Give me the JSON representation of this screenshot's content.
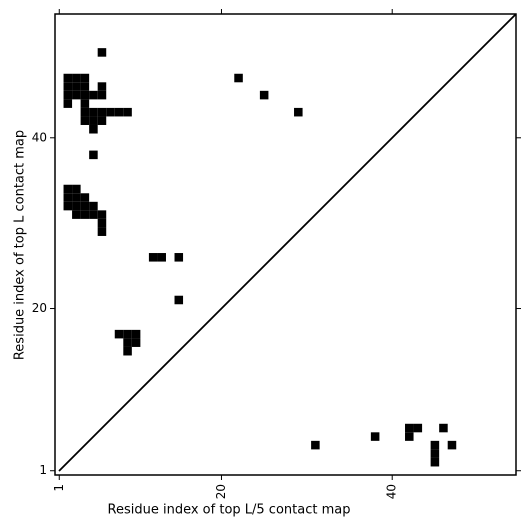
{
  "chart_data": {
    "type": "scatter",
    "marker": "square",
    "xlabel": "Residue index of top L/5 contact map",
    "ylabel": "Residue index of top L contact map",
    "xlim": [
      0.5,
      54.5
    ],
    "ylim": [
      0.5,
      54.5
    ],
    "xticks": [
      1,
      20,
      40
    ],
    "yticks": [
      1,
      20,
      40
    ],
    "grid": false,
    "diagonal": true,
    "series": [
      {
        "color": "#000000",
        "x": [
          6,
          2,
          3,
          4,
          2,
          3,
          4,
          2,
          3,
          4,
          2,
          4,
          4,
          5,
          6,
          7,
          8,
          9,
          4,
          5,
          6,
          5,
          6,
          6,
          5,
          5,
          22,
          25,
          29,
          2,
          3,
          2,
          3,
          4,
          2,
          3,
          4,
          5,
          3,
          4,
          5,
          6,
          6,
          6,
          12,
          13,
          15,
          15,
          8,
          9,
          10,
          9,
          10,
          9
        ],
        "y": [
          50,
          47,
          47,
          47,
          46,
          46,
          46,
          45,
          45,
          45,
          44,
          44,
          43,
          43,
          43,
          43,
          43,
          43,
          42,
          42,
          42,
          41,
          46,
          45,
          45,
          38,
          47,
          45,
          43,
          34,
          34,
          33,
          33,
          33,
          32,
          32,
          32,
          32,
          31,
          31,
          31,
          31,
          30,
          29,
          26,
          26,
          26,
          21,
          17,
          17,
          17,
          16,
          16,
          15
        ]
      },
      {
        "color": "#000000",
        "x": [
          31,
          38,
          42,
          43,
          42,
          46,
          47,
          45,
          45,
          45
        ],
        "y": [
          4,
          5,
          6,
          6,
          5,
          6,
          4,
          4,
          3,
          2
        ]
      }
    ]
  }
}
